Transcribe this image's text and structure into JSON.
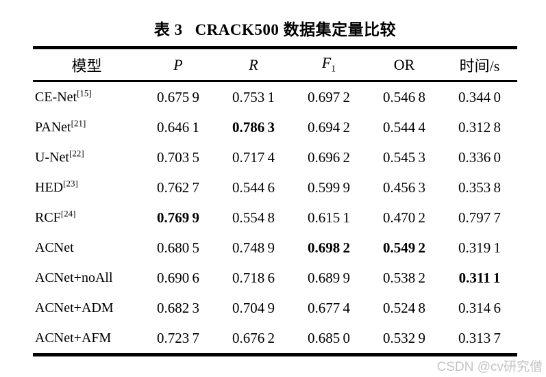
{
  "caption": {
    "label": "表 3",
    "text": "CRACK500 数据集定量比较"
  },
  "table": {
    "headers": [
      {
        "key": "model",
        "text": "模型",
        "italic": false
      },
      {
        "key": "P",
        "text": "P",
        "italic": true
      },
      {
        "key": "R",
        "text": "R",
        "italic": true
      },
      {
        "key": "F1",
        "text": "F",
        "sub": "1",
        "italic": true
      },
      {
        "key": "OR",
        "text": "OR",
        "italic": false
      },
      {
        "key": "time",
        "text": "时间/s",
        "italic": false
      }
    ],
    "rows": [
      {
        "model": "CE-Net",
        "ref": "[15]",
        "values": [
          "0.675 9",
          "0.753 1",
          "0.697 2",
          "0.546 8",
          "0.344 0"
        ],
        "bold": [
          false,
          false,
          false,
          false,
          false
        ]
      },
      {
        "model": "PANet",
        "ref": "[21]",
        "values": [
          "0.646 1",
          "0.786 3",
          "0.694 2",
          "0.544 4",
          "0.312 8"
        ],
        "bold": [
          false,
          true,
          false,
          false,
          false
        ]
      },
      {
        "model": "U-Net",
        "ref": "[22]",
        "values": [
          "0.703 5",
          "0.717 4",
          "0.696 2",
          "0.545 3",
          "0.336 0"
        ],
        "bold": [
          false,
          false,
          false,
          false,
          false
        ]
      },
      {
        "model": "HED",
        "ref": "[23]",
        "values": [
          "0.762 7",
          "0.544 6",
          "0.599 9",
          "0.456 3",
          "0.353 8"
        ],
        "bold": [
          false,
          false,
          false,
          false,
          false
        ]
      },
      {
        "model": "RCF",
        "ref": "[24]",
        "values": [
          "0.769 9",
          "0.554 8",
          "0.615 1",
          "0.470 2",
          "0.797 7"
        ],
        "bold": [
          true,
          false,
          false,
          false,
          false
        ]
      },
      {
        "model": "ACNet",
        "ref": "",
        "values": [
          "0.680 5",
          "0.748 9",
          "0.698 2",
          "0.549 2",
          "0.319 1"
        ],
        "bold": [
          false,
          false,
          true,
          true,
          false
        ]
      },
      {
        "model": "ACNet+noAll",
        "ref": "",
        "values": [
          "0.690 6",
          "0.718 6",
          "0.689 9",
          "0.538 2",
          "0.311 1"
        ],
        "bold": [
          false,
          false,
          false,
          false,
          true
        ]
      },
      {
        "model": "ACNet+ADM",
        "ref": "",
        "values": [
          "0.682 3",
          "0.704 9",
          "0.677 4",
          "0.524 8",
          "0.314 6"
        ],
        "bold": [
          false,
          false,
          false,
          false,
          false
        ]
      },
      {
        "model": "ACNet+AFM",
        "ref": "",
        "values": [
          "0.723 7",
          "0.676 2",
          "0.685 0",
          "0.532 9",
          "0.313 7"
        ],
        "bold": [
          false,
          false,
          false,
          false,
          false
        ]
      }
    ]
  },
  "watermark": {
    "text": "CSDN @cv研究僧"
  },
  "colors": {
    "text": "#000000",
    "background": "#ffffff",
    "rule": "#000000",
    "watermark": "#c3c3c3"
  }
}
